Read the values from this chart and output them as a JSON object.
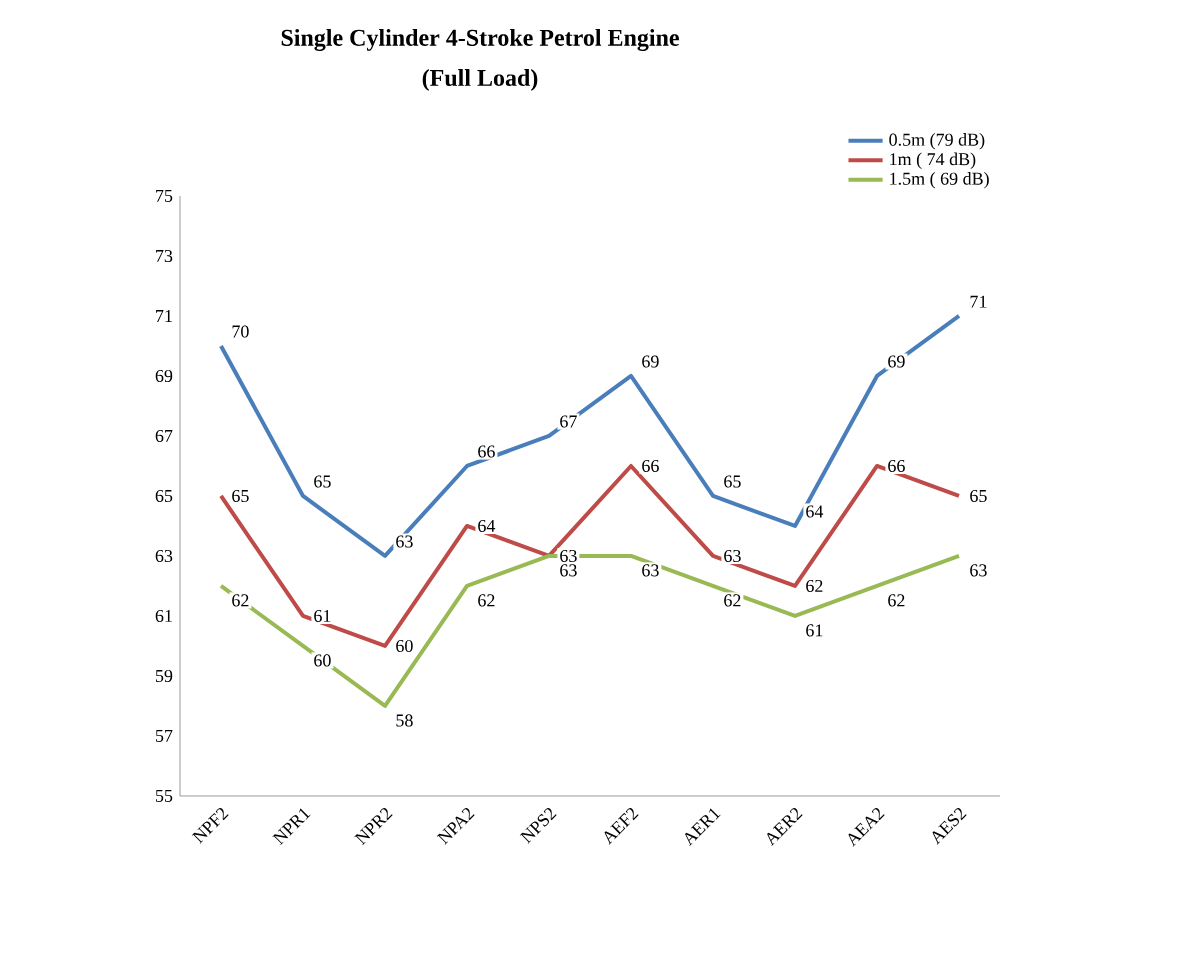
{
  "chart_data": {
    "type": "line",
    "title": "Single Cylinder  4-Stroke Petrol Engine",
    "subtitle": "(Full Load)",
    "categories": [
      "NPF2",
      "NPR1",
      "NPR2",
      "NPA2",
      "NPS2",
      "AEF2",
      "AER1",
      "AER2",
      "AEA2",
      "AES2"
    ],
    "series": [
      {
        "name": "0.5m (79 dB)",
        "color": "#4a7ebb",
        "values": [
          70,
          65,
          63,
          66,
          67,
          69,
          65,
          64,
          69,
          71
        ]
      },
      {
        "name": "1m ( 74 dB)",
        "color": "#be4b48",
        "values": [
          65,
          61,
          60,
          64,
          63,
          66,
          63,
          62,
          66,
          65
        ]
      },
      {
        "name": "1.5m ( 69 dB)",
        "color": "#98b954",
        "values": [
          62,
          60,
          58,
          62,
          63,
          63,
          62,
          61,
          62,
          63
        ]
      }
    ],
    "ylim": [
      55,
      75
    ],
    "yticks": [
      55,
      57,
      59,
      61,
      63,
      65,
      67,
      69,
      71,
      73,
      75
    ],
    "data_labels": true,
    "legend": "top right",
    "grid": false,
    "marker": "none",
    "line_style": "solid"
  }
}
